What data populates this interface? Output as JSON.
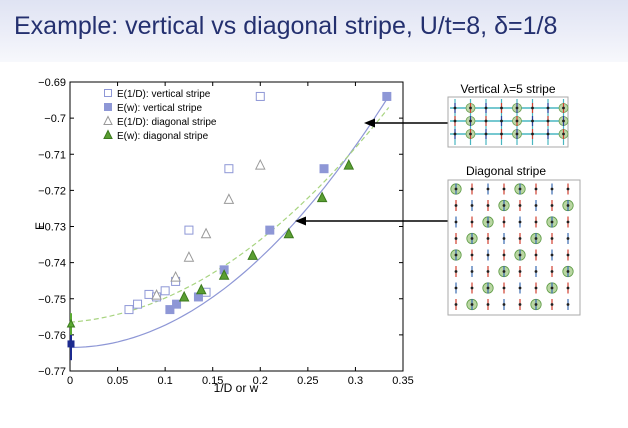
{
  "slide": {
    "title": "Example: vertical vs diagonal stripe, U/t=8, δ=1/8"
  },
  "panels": {
    "vertical_title": "Vertical λ=5 stripe",
    "diagonal_title": "Diagonal stripe"
  },
  "chart_data": {
    "type": "scatter",
    "xlabel": "1/D or w",
    "ylabel": "E",
    "xlim": [
      0,
      0.35
    ],
    "ylim": [
      -0.77,
      -0.69
    ],
    "xticks": [
      0,
      0.05,
      0.1,
      0.15,
      0.2,
      0.25,
      0.3,
      0.35
    ],
    "xtick_labels": [
      "0",
      "0.05",
      "0.1",
      "0.15",
      "0.2",
      "0.25",
      "0.3",
      "0.35"
    ],
    "yticks": [
      -0.69,
      -0.7,
      -0.71,
      -0.72,
      -0.73,
      -0.74,
      -0.75,
      -0.76,
      -0.77
    ],
    "ytick_labels": [
      "−0.69",
      "−0.7",
      "−0.71",
      "−0.72",
      "−0.73",
      "−0.74",
      "−0.75",
      "−0.76",
      "−0.77"
    ],
    "legend_position": "top-left",
    "series": [
      {
        "name": "E(1/D): vertical stripe",
        "marker": "square-open",
        "color": "#8e97d6",
        "x": [
          0.062,
          0.071,
          0.083,
          0.091,
          0.1,
          0.111,
          0.125,
          0.143,
          0.167,
          0.2
        ],
        "y": [
          -0.753,
          -0.7515,
          -0.7488,
          -0.7495,
          -0.7478,
          -0.7452,
          -0.731,
          -0.7482,
          -0.714,
          -0.694
        ]
      },
      {
        "name": "E(w): vertical stripe",
        "marker": "square-filled",
        "color": "#8e97d6",
        "x": [
          0.105,
          0.112,
          0.135,
          0.162,
          0.21,
          0.267,
          0.333
        ],
        "y": [
          -0.753,
          -0.7515,
          -0.7495,
          -0.742,
          -0.731,
          -0.714,
          -0.694
        ]
      },
      {
        "name": "E(1/D): diagonal stripe",
        "marker": "triangle-open",
        "color": "#999999",
        "x": [
          0.091,
          0.111,
          0.125,
          0.143,
          0.167,
          0.2
        ],
        "y": [
          -0.749,
          -0.744,
          -0.7385,
          -0.732,
          -0.7225,
          -0.713
        ]
      },
      {
        "name": "E(w): diagonal stripe",
        "marker": "triangle-filled",
        "color": "#5a9e32",
        "x": [
          0.12,
          0.138,
          0.162,
          0.192,
          0.23,
          0.265,
          0.293
        ],
        "y": [
          -0.7495,
          -0.7475,
          -0.7435,
          -0.738,
          -0.732,
          -0.722,
          -0.713
        ]
      }
    ],
    "fits": [
      {
        "name": "vertical fit",
        "color": "#8e97d6",
        "style": "solid",
        "intercept": -0.7635,
        "a": 0.0,
        "b": 0.62
      },
      {
        "name": "diagonal fit",
        "color": "#a8d480",
        "style": "dashed",
        "intercept": -0.7565,
        "a": 0.02,
        "b": 0.47
      }
    ],
    "extrapolated": [
      {
        "marker": "square-filled",
        "color": "#1c2a8f",
        "x": 0,
        "y": -0.7625,
        "err": 0.0045
      },
      {
        "marker": "triangle-filled",
        "color": "#5aaa32",
        "x": 0,
        "y": -0.757,
        "err": 0.003
      }
    ]
  }
}
